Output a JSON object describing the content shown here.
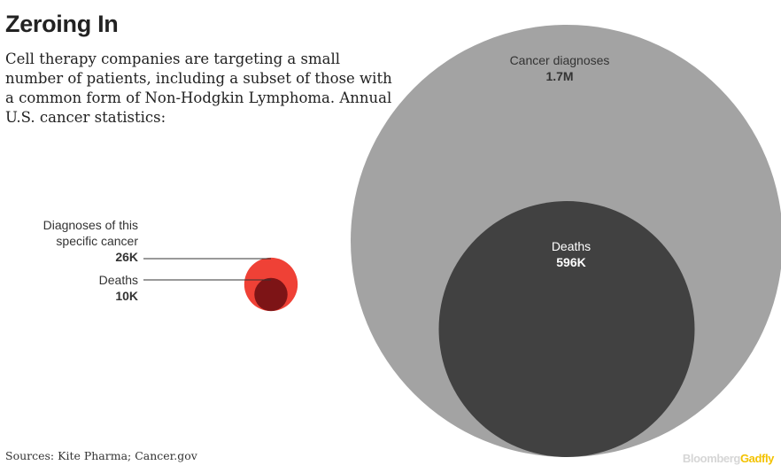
{
  "title": "Zeroing In",
  "subtitle": "Cell therapy companies are targeting a small number of patients, including a subset of those with a common form of Non-Hodgkin Lymphoma. Annual U.S. cancer statistics:",
  "source": "Sources: Kite Pharma; Cancer.gov",
  "brand": {
    "part1": "Bloomberg",
    "part2": "Gadfly"
  },
  "chart_data": {
    "type": "nested-circles",
    "groups": [
      {
        "name": "All cancers",
        "outer": {
          "label": "Cancer diagnoses",
          "value_label": "1.7M",
          "value": 1700000,
          "color": "#a3a3a3"
        },
        "inner": {
          "label": "Deaths",
          "value_label": "596K",
          "value": 596000,
          "color": "#414141"
        }
      },
      {
        "name": "Specific cancer",
        "outer": {
          "label_lines": [
            "Diagnoses of this",
            "specific cancer"
          ],
          "value_label": "26K",
          "value": 26000,
          "color": "#ef4136"
        },
        "inner": {
          "label": "Deaths",
          "value_label": "10K",
          "value": 10000,
          "color": "#7d1416"
        }
      }
    ]
  }
}
